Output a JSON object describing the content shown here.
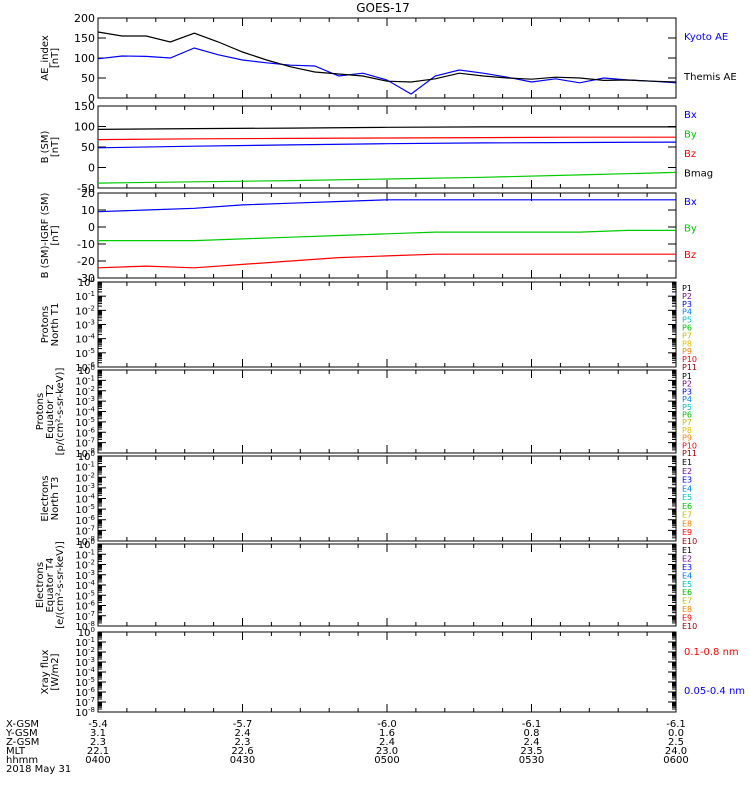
{
  "title": "GOES-17",
  "chart_data": [
    {
      "id": "ae",
      "type": "line",
      "ylabel": "AE_index\n[nT]",
      "ylim": [
        0,
        200
      ],
      "yticks": [
        0,
        50,
        100,
        150,
        200
      ],
      "log": false,
      "legend": [
        {
          "label": "Kyoto AE",
          "color": "#0000ff"
        },
        {
          "label": "Themis AE",
          "color": "#000000"
        }
      ],
      "series": [
        {
          "name": "Kyoto AE",
          "color": "#0000ff",
          "x": [
            0,
            5,
            10,
            15,
            20,
            25,
            30,
            35,
            40,
            45,
            50,
            55,
            60,
            65,
            70,
            75,
            80,
            85,
            90,
            95,
            100,
            105,
            110,
            115,
            120
          ],
          "y": [
            98,
            105,
            104,
            100,
            125,
            108,
            95,
            88,
            82,
            80,
            55,
            62,
            45,
            10,
            55,
            70,
            62,
            52,
            40,
            48,
            38,
            50,
            45,
            42,
            38
          ]
        },
        {
          "name": "Themis AE",
          "color": "#000000",
          "x": [
            0,
            5,
            10,
            15,
            20,
            25,
            30,
            35,
            40,
            45,
            50,
            55,
            60,
            65,
            70,
            75,
            80,
            85,
            90,
            95,
            100,
            105,
            110,
            115,
            120
          ],
          "y": [
            165,
            155,
            155,
            140,
            162,
            140,
            115,
            95,
            78,
            65,
            60,
            55,
            42,
            40,
            48,
            62,
            55,
            50,
            47,
            52,
            50,
            44,
            45,
            42,
            40
          ]
        }
      ]
    },
    {
      "id": "b",
      "type": "line",
      "ylabel": "B (SM)\n[nT]",
      "ylim": [
        -50,
        150
      ],
      "yticks": [
        -50,
        0,
        50,
        100,
        150
      ],
      "log": false,
      "legend": [
        {
          "label": "Bx",
          "color": "#0000ff"
        },
        {
          "label": "By",
          "color": "#00cc00"
        },
        {
          "label": "Bz",
          "color": "#ff0000"
        },
        {
          "label": "Bmag",
          "color": "#000000"
        }
      ],
      "series": [
        {
          "name": "Bmag",
          "color": "#000000",
          "x": [
            0,
            20,
            40,
            60,
            80,
            100,
            120
          ],
          "y": [
            93,
            95,
            96,
            98,
            99,
            99,
            99
          ]
        },
        {
          "name": "Bz",
          "color": "#ff0000",
          "x": [
            0,
            20,
            40,
            60,
            80,
            100,
            120
          ],
          "y": [
            68,
            70,
            71,
            72,
            73,
            74,
            74
          ]
        },
        {
          "name": "Bx",
          "color": "#0000ff",
          "x": [
            0,
            20,
            40,
            60,
            80,
            100,
            120
          ],
          "y": [
            48,
            52,
            55,
            58,
            60,
            61,
            62
          ]
        },
        {
          "name": "By",
          "color": "#00cc00",
          "x": [
            0,
            20,
            40,
            60,
            80,
            100,
            120
          ],
          "y": [
            -38,
            -35,
            -32,
            -28,
            -24,
            -18,
            -12
          ]
        }
      ]
    },
    {
      "id": "dbf",
      "type": "line",
      "ylabel": "B (SM)-IGRF (SM)\n[nT]",
      "ylim": [
        -30,
        20
      ],
      "yticks": [
        -30,
        -20,
        -10,
        0,
        10,
        20
      ],
      "log": false,
      "legend": [
        {
          "label": "Bx",
          "color": "#0000ff"
        },
        {
          "label": "By",
          "color": "#00cc00"
        },
        {
          "label": "Bz",
          "color": "#ff0000"
        }
      ],
      "series": [
        {
          "name": "Bx",
          "color": "#0000ff",
          "x": [
            0,
            10,
            20,
            30,
            40,
            50,
            60,
            70,
            80,
            90,
            100,
            110,
            120
          ],
          "y": [
            9,
            10,
            11,
            13,
            14,
            15,
            16,
            16,
            16,
            16,
            16,
            16,
            16
          ]
        },
        {
          "name": "By",
          "color": "#00cc00",
          "x": [
            0,
            10,
            20,
            30,
            40,
            50,
            60,
            70,
            80,
            90,
            100,
            110,
            120
          ],
          "y": [
            -8,
            -8,
            -8,
            -7,
            -6,
            -5,
            -4,
            -3,
            -3,
            -3,
            -3,
            -2,
            -2
          ]
        },
        {
          "name": "Bz",
          "color": "#ff0000",
          "x": [
            0,
            10,
            20,
            30,
            40,
            50,
            60,
            70,
            80,
            90,
            100,
            110,
            120
          ],
          "y": [
            -24,
            -23,
            -24,
            -22,
            -20,
            -18,
            -17,
            -16,
            -16,
            -16,
            -16,
            -16,
            -16
          ]
        }
      ]
    },
    {
      "id": "p1",
      "type": "line",
      "ylabel": "Protons\nNorth T1",
      "ylim": [
        1e-06,
        1
      ],
      "log": true,
      "legend": [
        {
          "label": "P1",
          "color": "#000000"
        },
        {
          "label": "P2",
          "color": "#6a0a8a"
        },
        {
          "label": "P3",
          "color": "#0000ff"
        },
        {
          "label": "P4",
          "color": "#0080ff"
        },
        {
          "label": "P5",
          "color": "#00c0c0"
        },
        {
          "label": "P6",
          "color": "#00c000"
        },
        {
          "label": "P7",
          "color": "#c0c000"
        },
        {
          "label": "P8",
          "color": "#e0c000"
        },
        {
          "label": "P9",
          "color": "#ff8000"
        },
        {
          "label": "P10",
          "color": "#ff0000"
        },
        {
          "label": "P11",
          "color": "#a00000"
        }
      ],
      "series": []
    },
    {
      "id": "p2",
      "type": "line",
      "ylabel": "Protons\nEquator T2\n[p/(cm²-s-sr-keV)]",
      "ylim": [
        1e-08,
        1
      ],
      "log": true,
      "legend": [
        {
          "label": "P1",
          "color": "#000000"
        },
        {
          "label": "P2",
          "color": "#6a0a8a"
        },
        {
          "label": "P3",
          "color": "#0000ff"
        },
        {
          "label": "P4",
          "color": "#0080ff"
        },
        {
          "label": "P5",
          "color": "#00c0c0"
        },
        {
          "label": "P6",
          "color": "#00c000"
        },
        {
          "label": "P7",
          "color": "#c0c000"
        },
        {
          "label": "P8",
          "color": "#e0c000"
        },
        {
          "label": "P9",
          "color": "#ff8000"
        },
        {
          "label": "P10",
          "color": "#ff0000"
        },
        {
          "label": "P11",
          "color": "#a00000"
        }
      ],
      "series": []
    },
    {
      "id": "e1",
      "type": "line",
      "ylabel": "Electrons\nNorth T3",
      "ylim": [
        1e-08,
        1
      ],
      "log": true,
      "legend": [
        {
          "label": "E1",
          "color": "#000000"
        },
        {
          "label": "E2",
          "color": "#6a0a8a"
        },
        {
          "label": "E3",
          "color": "#0000ff"
        },
        {
          "label": "E4",
          "color": "#0080ff"
        },
        {
          "label": "E5",
          "color": "#00c0c0"
        },
        {
          "label": "E6",
          "color": "#00c000"
        },
        {
          "label": "E7",
          "color": "#c0c000"
        },
        {
          "label": "E8",
          "color": "#ff8000"
        },
        {
          "label": "E9",
          "color": "#ff0000"
        },
        {
          "label": "E10",
          "color": "#a00000"
        }
      ],
      "series": []
    },
    {
      "id": "e2",
      "type": "line",
      "ylabel": "Electrons\nEquator T4\n[e/(cm²-s-sr-keV)]",
      "ylim": [
        1e-08,
        1
      ],
      "log": true,
      "legend": [
        {
          "label": "E1",
          "color": "#000000"
        },
        {
          "label": "E2",
          "color": "#6a0a8a"
        },
        {
          "label": "E3",
          "color": "#0000ff"
        },
        {
          "label": "E4",
          "color": "#0080ff"
        },
        {
          "label": "E5",
          "color": "#00c0c0"
        },
        {
          "label": "E6",
          "color": "#00c000"
        },
        {
          "label": "E7",
          "color": "#c0c000"
        },
        {
          "label": "E8",
          "color": "#ff8000"
        },
        {
          "label": "E9",
          "color": "#ff0000"
        },
        {
          "label": "E10",
          "color": "#a00000"
        }
      ],
      "series": []
    },
    {
      "id": "xray",
      "type": "line",
      "ylabel": "Xray flux\n[W/m2]",
      "ylim": [
        1e-08,
        1
      ],
      "log": true,
      "legend": [
        {
          "label": "0.1-0.8 nm",
          "color": "#ff0000"
        },
        {
          "label": "0.05-0.4 nm",
          "color": "#0000ff"
        }
      ],
      "series": []
    }
  ],
  "x_axis": {
    "range": [
      0,
      120
    ],
    "ticks": [
      0,
      30,
      60,
      90,
      120
    ],
    "rows": [
      {
        "label": "X-GSM",
        "values": [
          "-5.4",
          "-5.7",
          "-6.0",
          "-6.1",
          "-6.1"
        ]
      },
      {
        "label": "Y-GSM",
        "values": [
          "3.1",
          "2.4",
          "1.6",
          "0.8",
          "0.0"
        ]
      },
      {
        "label": "Z-GSM",
        "values": [
          "2.3",
          "2.3",
          "2.4",
          "2.4",
          "2.5"
        ]
      },
      {
        "label": "MLT",
        "values": [
          "22.1",
          "22.6",
          "23.0",
          "23.5",
          "24.0"
        ]
      },
      {
        "label": "hhmm",
        "values": [
          "0400",
          "0430",
          "0500",
          "0530",
          "0600"
        ]
      }
    ],
    "date": "2018 May 31"
  }
}
